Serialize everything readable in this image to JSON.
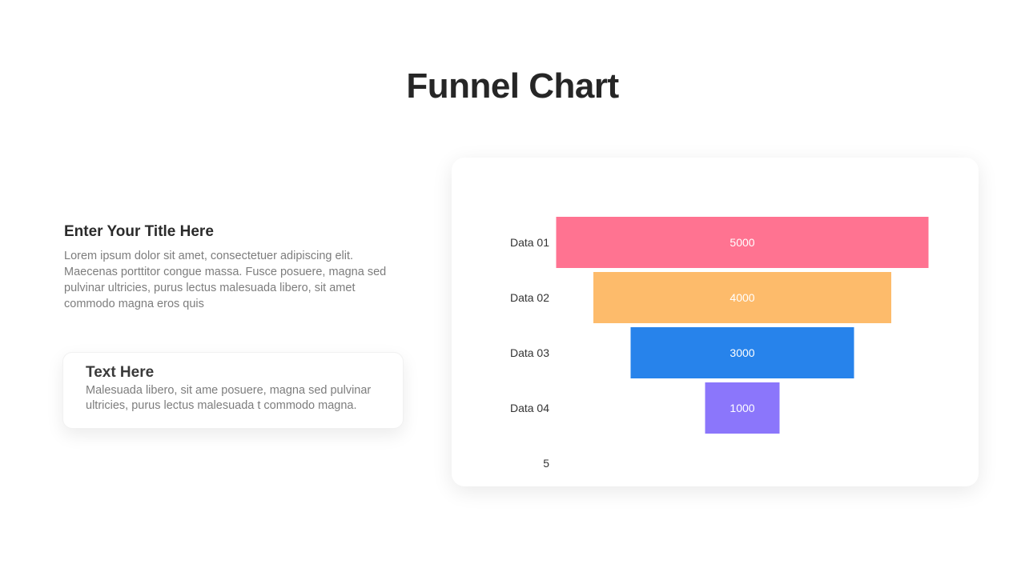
{
  "page": {
    "title": "Funnel Chart"
  },
  "info": {
    "heading": "Enter Your Title Here",
    "body": "Lorem ipsum dolor sit amet, consectetuer adipiscing elit. Maecenas porttitor congue massa. Fusce posuere, magna sed pulvinar ultricies, purus lectus malesuada libero, sit amet commodo magna eros quis"
  },
  "card": {
    "heading": "Text Here",
    "body": "Malesuada libero, sit ame posuere, magna sed pulvinar ultricies, purus lectus malesuada t commodo magna."
  },
  "chart_data": {
    "type": "funnel",
    "categories": [
      "Data 01",
      "Data 02",
      "Data 03",
      "Data 04",
      "5"
    ],
    "values": [
      5000,
      4000,
      3000,
      1000,
      null
    ],
    "data_labels": [
      "5000",
      "4000",
      "3000",
      "1000",
      ""
    ],
    "colors": [
      "#ff7391",
      "#fdbb6b",
      "#2783eb",
      "#8b76fb",
      ""
    ],
    "label_color": "#ffffff",
    "category_label_color": "#333333",
    "grid": false,
    "legend": "none"
  }
}
